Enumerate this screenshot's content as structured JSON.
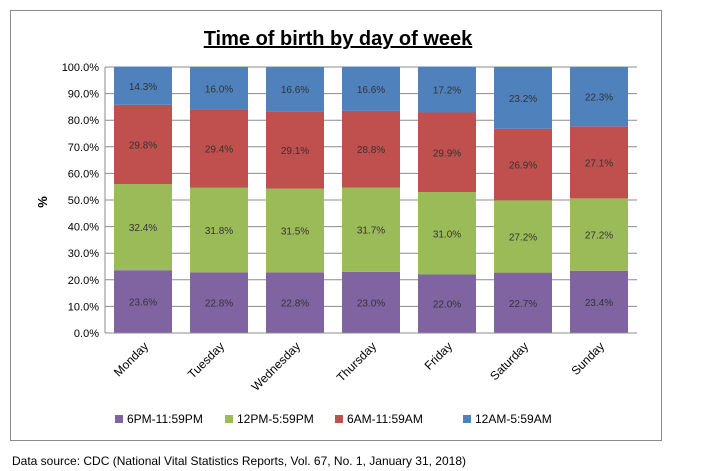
{
  "chart_data": {
    "type": "bar",
    "stacked": true,
    "title": "Time of birth by day of week",
    "ylabel": "%",
    "xlabel": "",
    "ylim": [
      0,
      100
    ],
    "yticks": [
      "0.0%",
      "10.0%",
      "20.0%",
      "30.0%",
      "40.0%",
      "50.0%",
      "60.0%",
      "70.0%",
      "80.0%",
      "90.0%",
      "100.0%"
    ],
    "grid": true,
    "legend_position": "bottom",
    "categories": [
      "Monday",
      "Tuesday",
      "Wednesday",
      "Thursday",
      "Friday",
      "Saturday",
      "Sunday"
    ],
    "series": [
      {
        "name": "6PM-11:59PM",
        "color": "#8064a2",
        "values": [
          23.6,
          22.8,
          22.8,
          23.0,
          22.0,
          22.7,
          23.4
        ],
        "labels": [
          "23.6%",
          "22.8%",
          "22.8%",
          "23.0%",
          "22.0%",
          "22.7%",
          "23.4%"
        ]
      },
      {
        "name": "12PM-5:59PM",
        "color": "#9bbb59",
        "values": [
          32.4,
          31.8,
          31.5,
          31.7,
          31.0,
          27.2,
          27.2
        ],
        "labels": [
          "32.4%",
          "31.8%",
          "31.5%",
          "31.7%",
          "31.0%",
          "27.2%",
          "27.2%"
        ]
      },
      {
        "name": "6AM-11:59AM",
        "color": "#c0504d",
        "values": [
          29.8,
          29.4,
          29.1,
          28.8,
          29.9,
          26.9,
          27.1
        ],
        "labels": [
          "29.8%",
          "29.4%",
          "29.1%",
          "28.8%",
          "29.9%",
          "26.9%",
          "27.1%"
        ]
      },
      {
        "name": "12AM-5:59AM",
        "color": "#4f81bd",
        "values": [
          14.3,
          16.0,
          16.6,
          16.6,
          17.2,
          23.2,
          22.3
        ],
        "labels": [
          "14.3%",
          "16.0%",
          "16.6%",
          "16.6%",
          "17.2%",
          "23.2%",
          "22.3%"
        ]
      }
    ]
  },
  "source": "Data source: CDC (National Vital Statistics Reports, Vol. 67, No. 1, January 31, 2018)"
}
